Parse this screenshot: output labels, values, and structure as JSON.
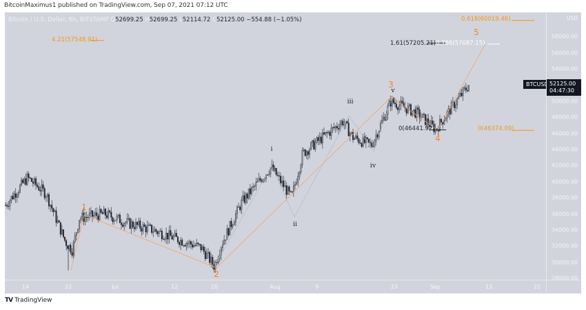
{
  "publish_line": "BitcoinMaximus1 published on TradingView.com, Sep 07, 2021 07:12 UTC",
  "legend": {
    "symbol": "Bitcoin / U.S. Dollar, 6h, BITSTAMP",
    "open_label": "O",
    "open": "52699.25",
    "high_label": "H",
    "high": "52699.25",
    "low_label": "L",
    "low": "52114.72",
    "close_label": "C",
    "close": "52125.00",
    "change": "−554.88 (−1.05%)"
  },
  "price_axis": {
    "currency": "USD",
    "labels": [
      "58000.00",
      "56000.00",
      "54000.00",
      "50000.00",
      "48000.00",
      "46000.00",
      "44000.00",
      "42000.00",
      "40000.00",
      "38000.00",
      "36000.00",
      "34000.00",
      "32000.00",
      "30000.00",
      "28000.00"
    ],
    "top_partial": "60000.00"
  },
  "time_axis": {
    "labels": [
      "14",
      "22",
      "Jul",
      "12",
      "20",
      "Aug",
      "9",
      "23",
      "Sep",
      "13",
      "21"
    ]
  },
  "current_price": {
    "symbol_tag": "BTCUSD",
    "price": "52125.00",
    "countdown": "04:47:30"
  },
  "fib_labels": {
    "top_right": "0.618(60019.46)",
    "ext_161": "1.61(57205.21)",
    "ext_786": "0.786(57087.15)",
    "left_421": "4.21(57548.91)",
    "wave4_zero": "0(46441.92)",
    "right_zero": "0(46374.09)"
  },
  "waves": {
    "major": [
      "1",
      "2",
      "3",
      "4",
      "5"
    ],
    "minor": [
      "i",
      "ii",
      "iii",
      "iv",
      "v"
    ]
  },
  "footer": {
    "logo": "TV",
    "brand": "TradingView"
  },
  "colors": {
    "background": "#d1d4dc",
    "wave_orange": "#f7841e",
    "fib_orange": "#f7931a",
    "candle_dark": "#1e222d",
    "candle_light": "#8a8e99",
    "tag_bg": "#131722"
  },
  "chart_data": {
    "type": "candlestick",
    "title": "Bitcoin / U.S. Dollar, 6h, BITSTAMP",
    "symbol": "BTCUSD",
    "interval": "6h",
    "ohlc_last": {
      "open": 52699.25,
      "high": 52699.25,
      "low": 52114.72,
      "close": 52125.0,
      "change": -554.88,
      "change_pct": -1.05
    },
    "x_tick_labels": [
      "14",
      "22",
      "Jul",
      "12",
      "20",
      "Aug",
      "9",
      "23",
      "Sep",
      "13",
      "21"
    ],
    "y_tick_labels": [
      28000,
      30000,
      32000,
      34000,
      36000,
      38000,
      40000,
      42000,
      44000,
      46000,
      48000,
      50000,
      52000,
      54000,
      56000,
      58000,
      60000
    ],
    "ylim": [
      28000,
      60000
    ],
    "approx_close_path": [
      {
        "date": "Jun 11",
        "price": 37000
      },
      {
        "date": "Jun 15",
        "price": 40500
      },
      {
        "date": "Jun 17",
        "price": 38500
      },
      {
        "date": "Jun 22",
        "price": 32500
      },
      {
        "date": "Jun 26",
        "price": 31500
      },
      {
        "date": "Jun 27",
        "price": 35500
      },
      {
        "date": "Jun 29",
        "price": 36000
      },
      {
        "date": "Jul 3",
        "price": 34800
      },
      {
        "date": "Jul 7",
        "price": 34000
      },
      {
        "date": "Jul 12",
        "price": 33000
      },
      {
        "date": "Jul 17",
        "price": 31800
      },
      {
        "date": "Jul 20",
        "price": 29500
      },
      {
        "date": "Jul 22",
        "price": 32200
      },
      {
        "date": "Jul 26",
        "price": 37500
      },
      {
        "date": "Jul 30",
        "price": 41800
      },
      {
        "date": "Aug 3",
        "price": 38000
      },
      {
        "date": "Aug 7",
        "price": 43500
      },
      {
        "date": "Aug 14",
        "price": 47500
      },
      {
        "date": "Aug 16",
        "price": 45500
      },
      {
        "date": "Aug 19",
        "price": 44500
      },
      {
        "date": "Aug 23",
        "price": 50000
      },
      {
        "date": "Aug 28",
        "price": 48500
      },
      {
        "date": "Aug 31",
        "price": 46500
      },
      {
        "date": "Sep 3",
        "price": 50000
      },
      {
        "date": "Sep 7",
        "price": 52125
      }
    ],
    "wave_points": [
      {
        "label": "1",
        "date": "Jun 27",
        "price": 35900
      },
      {
        "label": "2",
        "date": "Jul 20",
        "price": 29300
      },
      {
        "label": "3",
        "date": "Aug 23",
        "price": 50500
      },
      {
        "label": "4",
        "date": "Aug 31",
        "price": 46400
      },
      {
        "label": "5",
        "date": "Sep 10 (projected)",
        "price": 57100
      }
    ],
    "subwave_points": [
      {
        "label": "i",
        "date": "Jul 30",
        "price": 42500
      },
      {
        "label": "ii",
        "date": "Aug 4",
        "price": 36000
      },
      {
        "label": "iii",
        "date": "Aug 14",
        "price": 48200
      },
      {
        "label": "iv",
        "date": "Aug 19",
        "price": 43900
      },
      {
        "label": "v",
        "date": "Aug 23",
        "price": 50500
      }
    ],
    "fib_levels": [
      {
        "label": "0.618",
        "price": 60019.46
      },
      {
        "label": "4.21",
        "price": 57548.91
      },
      {
        "label": "1.61",
        "price": 57205.21
      },
      {
        "label": "0.786",
        "price": 57087.15
      },
      {
        "label": "0",
        "price": 46441.92
      },
      {
        "label": "0",
        "price": 46374.09
      }
    ],
    "grid": false,
    "legend_position": "top-left"
  }
}
